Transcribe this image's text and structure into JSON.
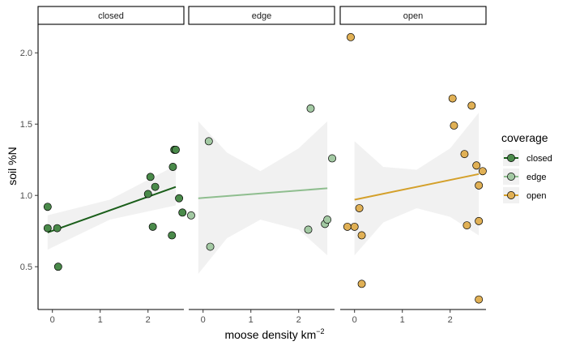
{
  "chart_data": {
    "type": "scatter",
    "xlabel": "moose density km",
    "xlabel_superscript": "−2",
    "ylabel": "soil %N",
    "xlim": [
      -0.3,
      2.75
    ],
    "ylim": [
      0.2,
      2.2
    ],
    "x_ticks": [
      0,
      1,
      2
    ],
    "y_ticks": [
      0.5,
      1.0,
      1.5,
      2.0
    ],
    "y_tick_labels": [
      "0.5",
      "1.0",
      "1.5",
      "2.0"
    ],
    "grid": false,
    "legend": {
      "title": "coverage",
      "position": "right",
      "entries": [
        {
          "label": "closed",
          "line_color": "#1a5e1a",
          "point_color": "#4a8a4a"
        },
        {
          "label": "edge",
          "line_color": "#8fbe8f",
          "point_color": "#a3c9a3"
        },
        {
          "label": "open",
          "line_color": "#d4a02a",
          "point_color": "#e0b055"
        }
      ]
    },
    "panels": [
      {
        "strip": "closed",
        "point_color": "#4a8a4a",
        "line_color": "#1a5e1a",
        "points": [
          {
            "x": -0.1,
            "y": 0.92
          },
          {
            "x": -0.1,
            "y": 0.77
          },
          {
            "x": 0.1,
            "y": 0.77
          },
          {
            "x": 0.12,
            "y": 0.5
          },
          {
            "x": 2.0,
            "y": 1.01
          },
          {
            "x": 2.05,
            "y": 1.13
          },
          {
            "x": 2.1,
            "y": 0.78
          },
          {
            "x": 2.15,
            "y": 1.06
          },
          {
            "x": 2.5,
            "y": 0.72
          },
          {
            "x": 2.52,
            "y": 1.2
          },
          {
            "x": 2.55,
            "y": 1.32
          },
          {
            "x": 2.58,
            "y": 1.32
          },
          {
            "x": 2.65,
            "y": 0.98
          },
          {
            "x": 2.72,
            "y": 0.88
          }
        ],
        "fit": {
          "x": [
            -0.1,
            2.58
          ],
          "y": [
            0.74,
            1.06
          ]
        },
        "ribbon": {
          "x": [
            -0.1,
            1.2,
            2.58
          ],
          "lower": [
            0.62,
            0.83,
            0.93
          ],
          "upper": [
            0.86,
            0.97,
            1.21
          ]
        }
      },
      {
        "strip": "edge",
        "point_color": "#a3c9a3",
        "line_color": "#8fbe8f",
        "points": [
          {
            "x": -0.25,
            "y": 0.86
          },
          {
            "x": 0.12,
            "y": 1.38
          },
          {
            "x": 0.15,
            "y": 0.64
          },
          {
            "x": 2.2,
            "y": 0.76
          },
          {
            "x": 2.25,
            "y": 1.61
          },
          {
            "x": 2.55,
            "y": 0.8
          },
          {
            "x": 2.6,
            "y": 0.83
          },
          {
            "x": 2.7,
            "y": 1.26
          }
        ],
        "fit": {
          "x": [
            -0.1,
            2.6
          ],
          "y": [
            0.98,
            1.05
          ]
        },
        "ribbon": {
          "x": [
            -0.1,
            0.5,
            1.2,
            2.0,
            2.6
          ],
          "lower": [
            0.45,
            0.7,
            0.83,
            0.76,
            0.58
          ],
          "upper": [
            1.52,
            1.3,
            1.17,
            1.33,
            1.52
          ]
        }
      },
      {
        "strip": "open",
        "point_color": "#e0b055",
        "line_color": "#d4a02a",
        "points": [
          {
            "x": -0.08,
            "y": 2.11
          },
          {
            "x": -0.15,
            "y": 0.78
          },
          {
            "x": 0.0,
            "y": 0.78
          },
          {
            "x": 0.1,
            "y": 0.91
          },
          {
            "x": 0.15,
            "y": 0.72
          },
          {
            "x": 0.15,
            "y": 0.38
          },
          {
            "x": 2.05,
            "y": 1.68
          },
          {
            "x": 2.08,
            "y": 1.49
          },
          {
            "x": 2.3,
            "y": 1.29
          },
          {
            "x": 2.35,
            "y": 0.79
          },
          {
            "x": 2.45,
            "y": 1.63
          },
          {
            "x": 2.55,
            "y": 1.21
          },
          {
            "x": 2.6,
            "y": 1.07
          },
          {
            "x": 2.6,
            "y": 0.82
          },
          {
            "x": 2.6,
            "y": 0.27
          },
          {
            "x": 2.68,
            "y": 1.17
          }
        ],
        "fit": {
          "x": [
            0.0,
            2.6
          ],
          "y": [
            0.97,
            1.15
          ]
        },
        "ribbon": {
          "x": [
            0.0,
            0.6,
            1.3,
            2.0,
            2.6
          ],
          "lower": [
            0.58,
            0.81,
            0.91,
            0.85,
            0.72
          ],
          "upper": [
            1.38,
            1.2,
            1.18,
            1.33,
            1.58
          ]
        }
      }
    ]
  }
}
